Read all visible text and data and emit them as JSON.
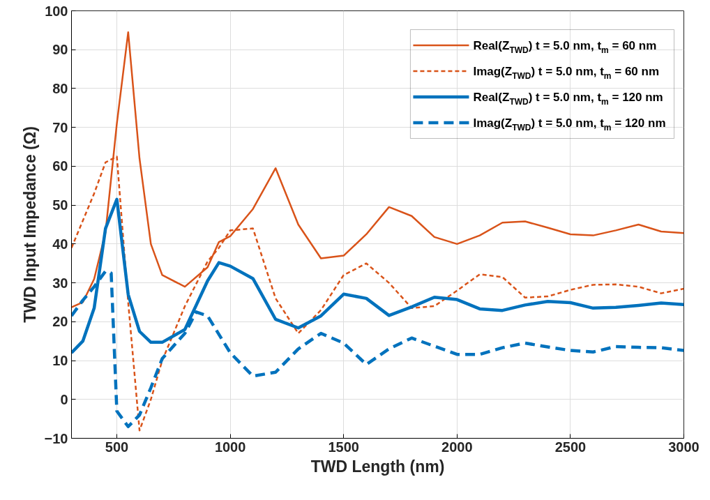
{
  "chart_data": {
    "type": "line",
    "xlabel": "TWD Length (nm)",
    "ylabel": "TWD Input Impedance (Ω)",
    "xlim": [
      300,
      3000
    ],
    "ylim": [
      -10,
      100
    ],
    "xticks": [
      500,
      1000,
      1500,
      2000,
      2500,
      3000
    ],
    "yticks": [
      -10,
      0,
      10,
      20,
      30,
      40,
      50,
      60,
      70,
      80,
      90,
      100
    ],
    "grid": true,
    "legend": "top right",
    "marker": "none",
    "series": [
      {
        "name": "Real(Z$_{TWD}$) t = 5.0 nm, t$_{m}$ = 60 nm",
        "color": "#d95319",
        "line_style": "solid",
        "x": [
          300,
          350,
          400,
          450,
          500,
          550,
          600,
          650,
          700,
          800,
          900,
          950,
          1000,
          1100,
          1200,
          1300,
          1400,
          1500,
          1600,
          1700,
          1800,
          1900,
          2000,
          2100,
          2200,
          2300,
          2400,
          2500,
          2600,
          2700,
          2800,
          2900,
          3000
        ],
        "values": [
          23.7,
          25,
          31,
          43,
          71,
          94.5,
          62,
          40,
          32,
          29,
          34,
          40.5,
          42,
          49,
          59.5,
          45,
          36.3,
          37,
          42.5,
          49.5,
          47.2,
          41.8,
          40,
          42.2,
          45.5,
          45.8,
          44.2,
          42.5,
          42.2,
          43.5,
          45,
          43.2,
          42.8
        ]
      },
      {
        "name": "Imag(Z$_{TWD}$) t = 5.0 nm, t$_{m}$ = 60 nm",
        "color": "#d95319",
        "line_style": "dashed",
        "x": [
          300,
          350,
          400,
          450,
          500,
          550,
          600,
          650,
          700,
          800,
          900,
          950,
          1000,
          1100,
          1200,
          1300,
          1400,
          1500,
          1600,
          1700,
          1800,
          1900,
          2000,
          2100,
          2200,
          2300,
          2400,
          2500,
          2600,
          2700,
          2800,
          2900,
          3000
        ],
        "values": [
          39,
          46,
          53,
          61,
          62.5,
          25,
          -8,
          0,
          10,
          24,
          35.5,
          39,
          43.5,
          44,
          26,
          17,
          23,
          32,
          35,
          30,
          23.5,
          24,
          28,
          32.2,
          31.5,
          26.2,
          26.5,
          28.2,
          29.5,
          29.6,
          29,
          27.3,
          28.5
        ]
      },
      {
        "name": "Real(Z$_{TWD}$) t = 5.0 nm, t$_{m}$ = 120 nm",
        "color": "#0072bd",
        "line_style": "solid",
        "x": [
          300,
          350,
          400,
          450,
          500,
          550,
          600,
          650,
          700,
          800,
          900,
          950,
          1000,
          1100,
          1200,
          1300,
          1400,
          1500,
          1600,
          1700,
          1800,
          1900,
          2000,
          2100,
          2200,
          2300,
          2400,
          2500,
          2600,
          2700,
          2800,
          2900,
          3000
        ],
        "values": [
          12,
          15,
          23.5,
          44,
          51.5,
          27,
          17.5,
          14.7,
          14.7,
          18,
          30.5,
          35.2,
          34.3,
          31.1,
          20.6,
          18.4,
          21.5,
          27.1,
          26,
          21.6,
          23.8,
          26.3,
          25.7,
          23.3,
          22.9,
          24.3,
          25.2,
          24.9,
          23.5,
          23.7,
          24.2,
          24.8,
          24.4
        ]
      },
      {
        "name": "Imag(Z$_{TWD}$) t = 5.0 nm, t$_{m}$ = 120 nm",
        "color": "#0072bd",
        "line_style": "dashed",
        "x": [
          300,
          350,
          400,
          450,
          475,
          500,
          550,
          600,
          650,
          700,
          800,
          850,
          900,
          1000,
          1100,
          1200,
          1300,
          1400,
          1500,
          1600,
          1700,
          1800,
          1900,
          2000,
          2100,
          2200,
          2300,
          2400,
          2500,
          2600,
          2700,
          2800,
          2900,
          3000
        ],
        "values": [
          21.5,
          25.5,
          29,
          33,
          32.5,
          -3,
          -7,
          -4,
          3,
          10.5,
          17,
          22.5,
          21.5,
          12,
          6,
          7,
          13,
          17,
          14.5,
          9,
          13,
          15.8,
          13.7,
          11.6,
          11.6,
          13.3,
          14.5,
          13.5,
          12.6,
          12.2,
          13.6,
          13.4,
          13.3,
          12.6
        ]
      }
    ]
  }
}
